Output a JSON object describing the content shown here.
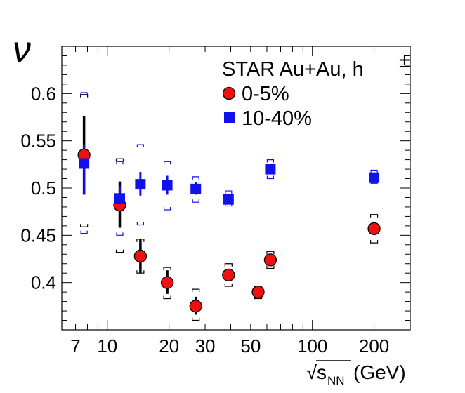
{
  "chart_data": {
    "type": "scatter",
    "title": "",
    "xlabel_root": "√",
    "xlabel_s": "s",
    "xlabel_sub": "NN",
    "xlabel_unit": "(GeV)",
    "ylabel": "ν",
    "xscale": "log",
    "xlim": [
      6.0,
      300.0
    ],
    "ylim": [
      0.35,
      0.65
    ],
    "x_ticks": [
      7,
      10,
      20,
      30,
      50,
      100,
      200
    ],
    "x_tick_labels": [
      "7",
      "10",
      "20",
      "30",
      "50",
      "100",
      "200"
    ],
    "y_ticks": [
      0.4,
      0.45,
      0.5,
      0.55,
      0.6
    ],
    "y_tick_labels": [
      "0.4",
      "0.45",
      "0.5",
      "0.55",
      "0.6"
    ],
    "legend": {
      "title": "STAR Au+Au, h",
      "title_sup": "±",
      "position": "top-right",
      "entries": [
        "0-5%",
        "10-40%"
      ]
    },
    "series": [
      {
        "name": "0-5%",
        "marker": "circle",
        "color": "#ee1111",
        "edge_color": "#000000",
        "points": [
          {
            "x": 7.7,
            "y": 0.535,
            "stat_lo": 0.493,
            "stat_hi": 0.576,
            "sys_lo": 0.459,
            "sys_hi": 0.599
          },
          {
            "x": 11.5,
            "y": 0.482,
            "stat_lo": 0.458,
            "stat_hi": 0.507,
            "sys_lo": 0.432,
            "sys_hi": 0.531
          },
          {
            "x": 14.5,
            "y": 0.428,
            "stat_lo": 0.41,
            "stat_hi": 0.446,
            "sys_lo": 0.41,
            "sys_hi": 0.446
          },
          {
            "x": 19.6,
            "y": 0.4,
            "stat_lo": 0.388,
            "stat_hi": 0.413,
            "sys_lo": 0.383,
            "sys_hi": 0.416
          },
          {
            "x": 27,
            "y": 0.375,
            "stat_lo": 0.366,
            "stat_hi": 0.385,
            "sys_lo": 0.36,
            "sys_hi": 0.393
          },
          {
            "x": 39,
            "y": 0.408,
            "stat_lo": 0.408,
            "stat_hi": 0.408,
            "sys_lo": 0.396,
            "sys_hi": 0.42
          },
          {
            "x": 54.4,
            "y": 0.39,
            "stat_lo": 0.39,
            "stat_hi": 0.39,
            "sys_lo": 0.383,
            "sys_hi": 0.396
          },
          {
            "x": 62.4,
            "y": 0.424,
            "stat_lo": 0.424,
            "stat_hi": 0.424,
            "sys_lo": 0.415,
            "sys_hi": 0.433
          },
          {
            "x": 200,
            "y": 0.457,
            "stat_lo": 0.457,
            "stat_hi": 0.457,
            "sys_lo": 0.442,
            "sys_hi": 0.472
          }
        ]
      },
      {
        "name": "10-40%",
        "marker": "square",
        "color": "#1111ee",
        "edge_color": "#1111ee",
        "points": [
          {
            "x": 7.7,
            "y": 0.526,
            "stat_lo": 0.493,
            "stat_hi": 0.546,
            "sys_lo": 0.452,
            "sys_hi": 0.601
          },
          {
            "x": 11.5,
            "y": 0.489,
            "stat_lo": 0.476,
            "stat_hi": 0.502,
            "sys_lo": 0.45,
            "sys_hi": 0.528
          },
          {
            "x": 14.5,
            "y": 0.504,
            "stat_lo": 0.492,
            "stat_hi": 0.517,
            "sys_lo": 0.461,
            "sys_hi": 0.546
          },
          {
            "x": 19.6,
            "y": 0.503,
            "stat_lo": 0.493,
            "stat_hi": 0.513,
            "sys_lo": 0.477,
            "sys_hi": 0.528
          },
          {
            "x": 27,
            "y": 0.499,
            "stat_lo": 0.493,
            "stat_hi": 0.506,
            "sys_lo": 0.485,
            "sys_hi": 0.512
          },
          {
            "x": 39,
            "y": 0.488,
            "stat_lo": 0.488,
            "stat_hi": 0.488,
            "sys_lo": 0.481,
            "sys_hi": 0.497
          },
          {
            "x": 62.4,
            "y": 0.52,
            "stat_lo": 0.52,
            "stat_hi": 0.52,
            "sys_lo": 0.51,
            "sys_hi": 0.53
          },
          {
            "x": 200,
            "y": 0.511,
            "stat_lo": 0.511,
            "stat_hi": 0.511,
            "sys_lo": 0.505,
            "sys_hi": 0.519
          }
        ]
      }
    ]
  }
}
